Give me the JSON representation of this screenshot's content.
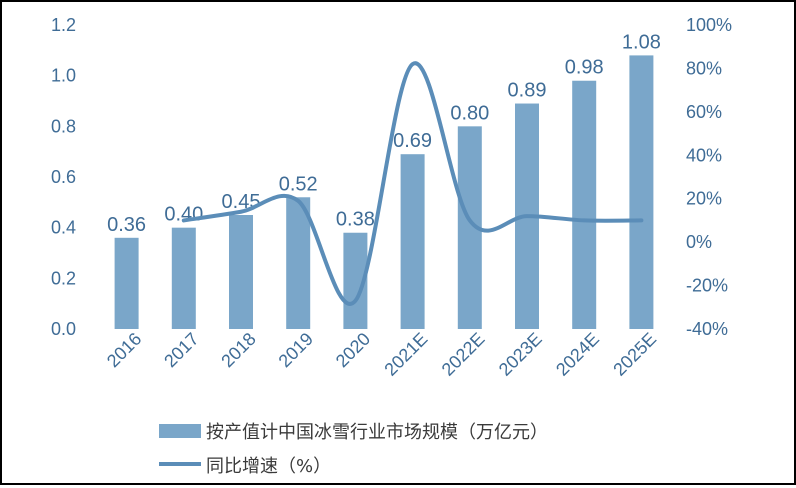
{
  "chart_data": {
    "type": "bar",
    "categories": [
      "2016",
      "2017",
      "2018",
      "2019",
      "2020",
      "2021E",
      "2022E",
      "2023E",
      "2024E",
      "2025E"
    ],
    "series": [
      {
        "name": "按产值计中国冰雪行业市场规模（万亿元）",
        "type": "bar",
        "axis": "left",
        "values": [
          0.36,
          0.4,
          0.45,
          0.52,
          0.38,
          0.69,
          0.8,
          0.89,
          0.98,
          1.08
        ],
        "labels": [
          "0.36",
          "0.40",
          "0.45",
          "0.52",
          "0.38",
          "0.69",
          "0.80",
          "0.89",
          "0.98",
          "1.08"
        ]
      },
      {
        "name": "同比增速（%）",
        "type": "line",
        "axis": "right",
        "values": [
          null,
          10,
          14,
          19,
          -27,
          82,
          10,
          12,
          10,
          10
        ]
      }
    ],
    "yleft": {
      "min": 0,
      "max": 1.2,
      "ticks": [
        "0.0",
        "0.2",
        "0.4",
        "0.6",
        "0.8",
        "1.0",
        "1.2"
      ]
    },
    "yright": {
      "min": -40,
      "max": 100,
      "ticks": [
        "-40%",
        "-20%",
        "0%",
        "20%",
        "40%",
        "60%",
        "80%",
        "100%"
      ]
    },
    "legend_position": "bottom-left",
    "grid": false,
    "colors": {
      "bar": "#7aa6c9",
      "line": "#5b8db8",
      "text": "#3f6c96"
    }
  }
}
